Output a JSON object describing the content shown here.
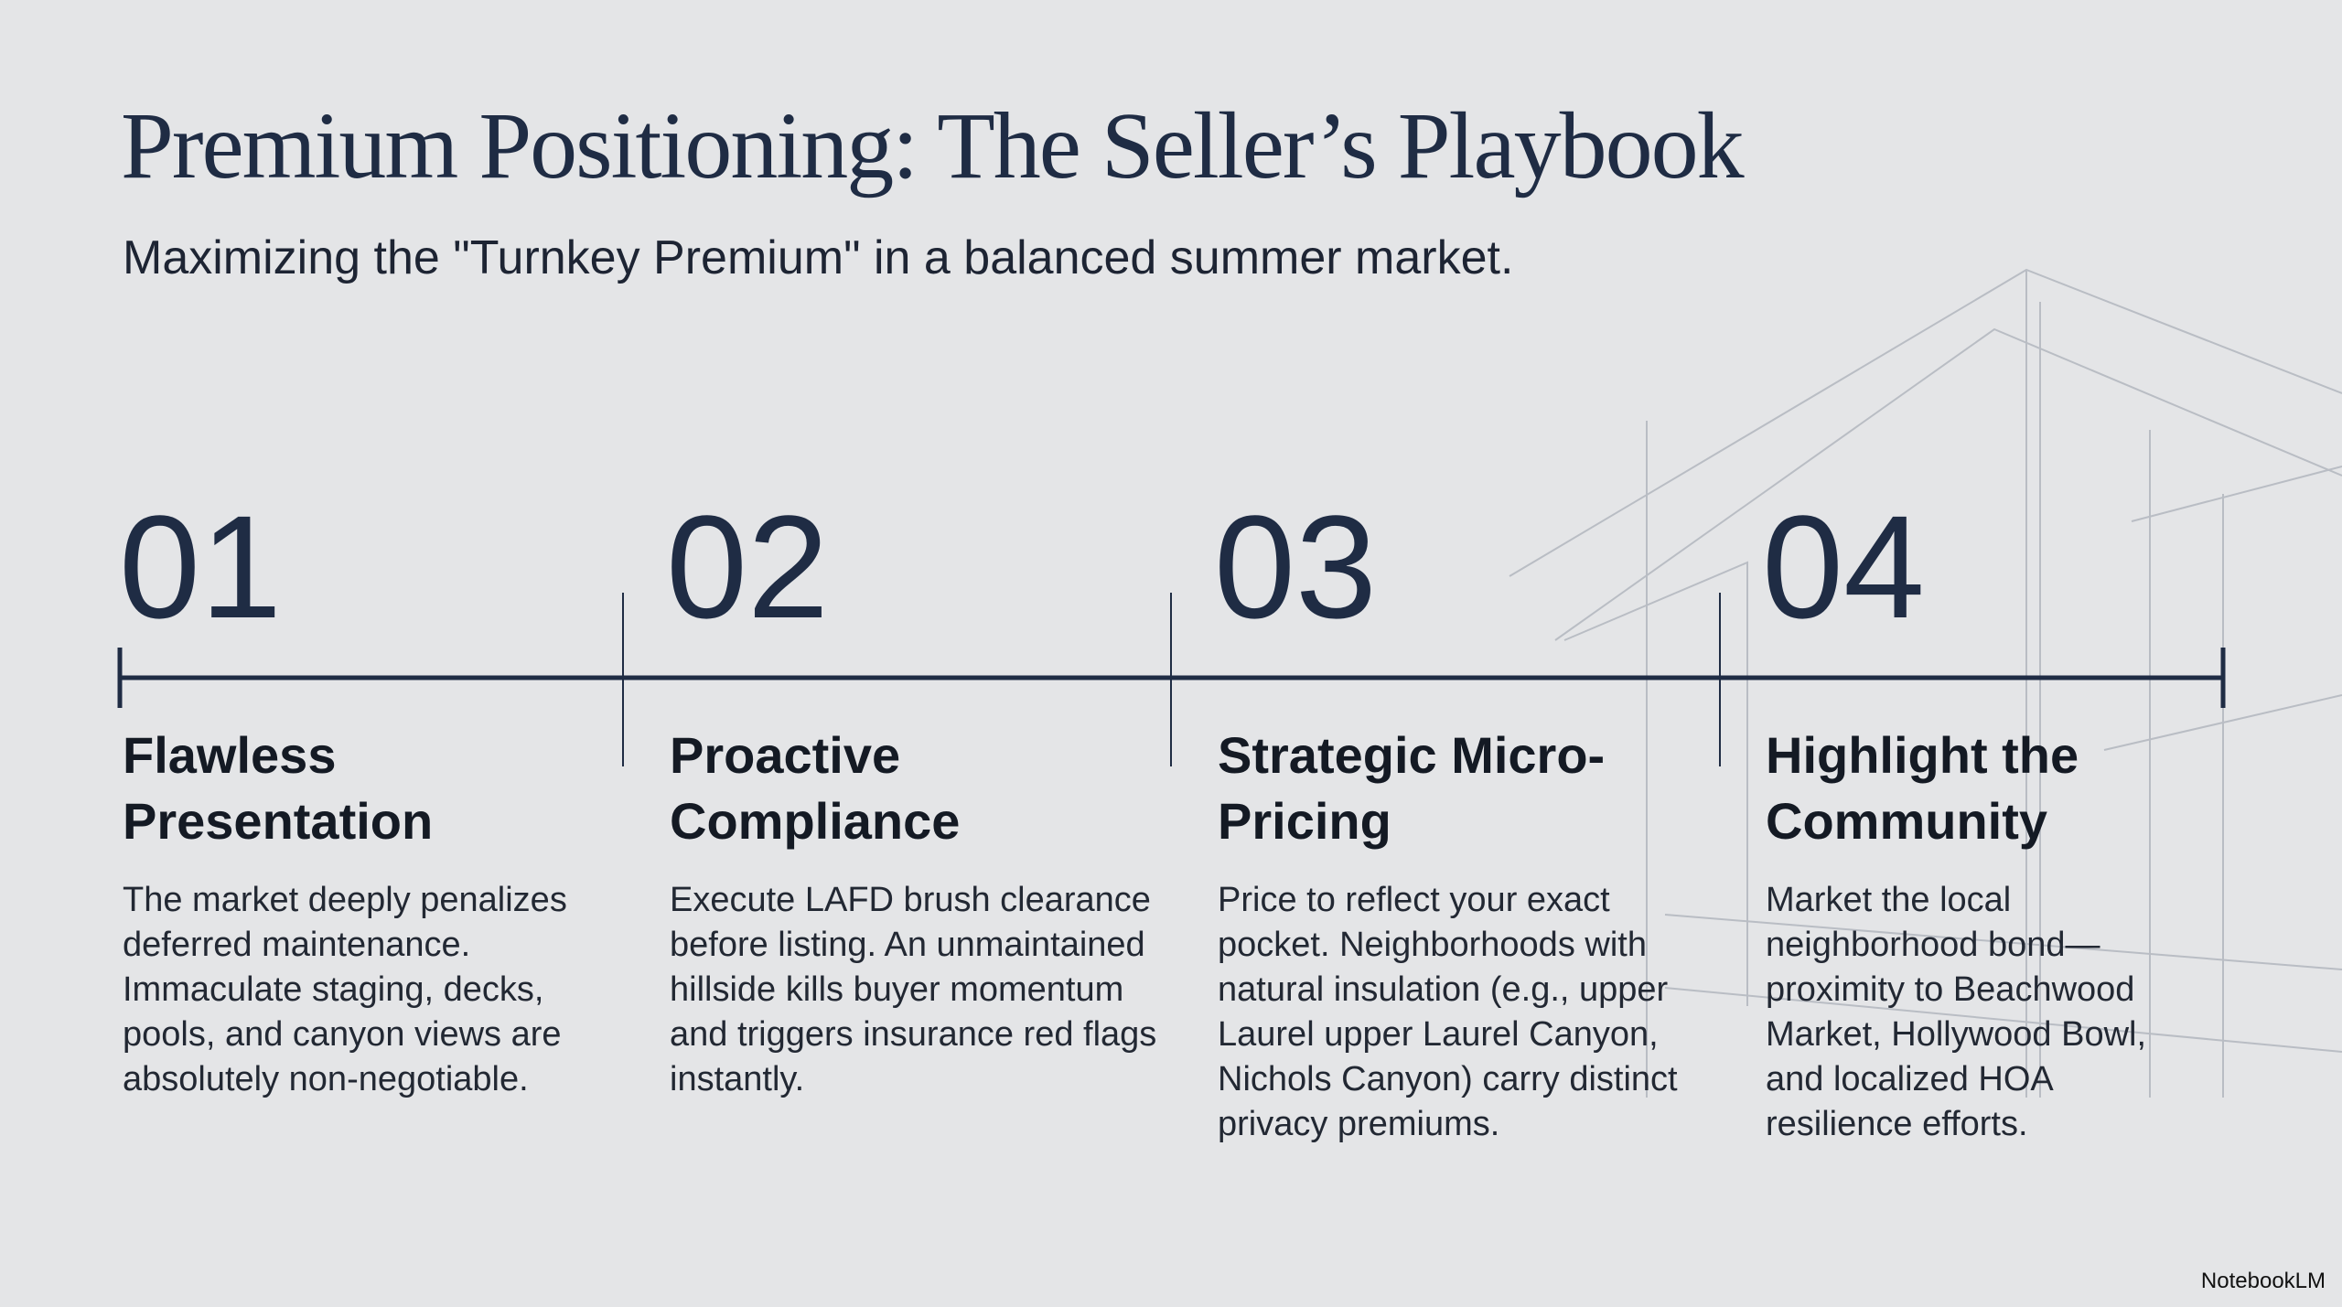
{
  "header": {
    "title": "Premium Positioning: The Seller’s Playbook",
    "subtitle": "Maximizing the \"Turnkey Premium\" in a balanced summer market."
  },
  "steps": [
    {
      "number": "01",
      "heading": "Flawless Presentation",
      "body": "The market deeply penalizes deferred maintenance. Immaculate staging, decks, pools, and canyon views are absolutely non-negotiable."
    },
    {
      "number": "02",
      "heading": "Proactive Compliance",
      "body": "Execute LAFD brush clearance before listing. An unmaintained hillside kills buyer momentum and triggers insurance red flags instantly."
    },
    {
      "number": "03",
      "heading": "Strategic Micro-Pricing",
      "body": "Price to reflect your exact pocket. Neighborhoods with natural insulation (e.g., upper Laurel upper Laurel Canyon, Nichols Canyon) carry distinct privacy premiums."
    },
    {
      "number": "04",
      "heading": "Highlight the Community",
      "body": "Market the local neighborhood bond—proximity to Beachwood Market, Hollywood Bowl, and localized HOA resilience efforts."
    }
  ],
  "footer": {
    "brand": "NotebookLM"
  }
}
